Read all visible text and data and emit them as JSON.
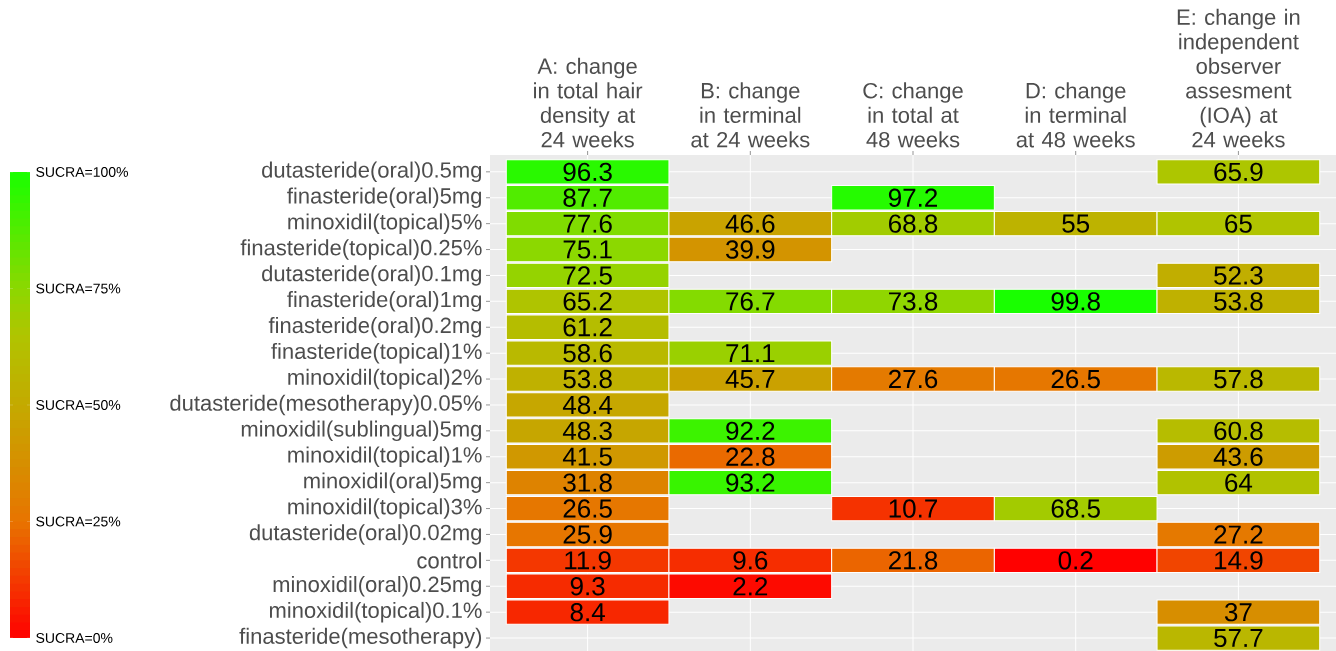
{
  "chart_data": {
    "type": "heatmap",
    "categories": [
      "A: change in total hair density at 24 weeks",
      "B: change in terminal at 24 weeks",
      "C: change in total at 48 weeks",
      "D: change in terminal at 48 weeks",
      "E: change in independent observer assesment (IOA) at 24 weeks"
    ],
    "y_categories": [
      "dutasteride(oral)0.5mg",
      "finasteride(oral)5mg",
      "minoxidil(topical)5%",
      "finasteride(topical)0.25%",
      "dutasteride(oral)0.1mg",
      "finasteride(oral)1mg",
      "finasteride(oral)0.2mg",
      "finasteride(topical)1%",
      "minoxidil(topical)2%",
      "dutasteride(mesotherapy)0.05%",
      "minoxidil(sublingual)5mg",
      "minoxidil(topical)1%",
      "minoxidil(oral)5mg",
      "minoxidil(topical)3%",
      "dutasteride(oral)0.02mg",
      "control",
      "minoxidil(oral)0.25mg",
      "minoxidil(topical)0.1%",
      "finasteride(mesotherapy)"
    ],
    "cells": [
      [
        96.3,
        null,
        null,
        null,
        65.9
      ],
      [
        87.7,
        null,
        97.2,
        null,
        null
      ],
      [
        77.6,
        46.6,
        68.8,
        55,
        65
      ],
      [
        75.1,
        39.9,
        null,
        null,
        null
      ],
      [
        72.5,
        null,
        null,
        null,
        52.3
      ],
      [
        65.2,
        76.7,
        73.8,
        99.8,
        53.8
      ],
      [
        61.2,
        null,
        null,
        null,
        null
      ],
      [
        58.6,
        71.1,
        null,
        null,
        null
      ],
      [
        53.8,
        45.7,
        27.6,
        26.5,
        57.8
      ],
      [
        48.4,
        null,
        null,
        null,
        null
      ],
      [
        48.3,
        92.2,
        null,
        null,
        60.8
      ],
      [
        41.5,
        22.8,
        null,
        null,
        43.6
      ],
      [
        31.8,
        93.2,
        null,
        null,
        64
      ],
      [
        26.5,
        null,
        10.7,
        68.5,
        null
      ],
      [
        25.9,
        null,
        null,
        null,
        27.2
      ],
      [
        11.9,
        9.6,
        21.8,
        0.2,
        14.9
      ],
      [
        9.3,
        2.2,
        null,
        null,
        null
      ],
      [
        8.4,
        null,
        null,
        null,
        37
      ],
      [
        null,
        null,
        null,
        null,
        57.7
      ]
    ],
    "data_labels": true,
    "grid": true,
    "clim": [
      0,
      100
    ],
    "cticks": [
      {
        "value": 0,
        "label": "SUCRA=0%"
      },
      {
        "value": 25,
        "label": "SUCRA=25%"
      },
      {
        "value": 50,
        "label": "SUCRA=50%"
      },
      {
        "value": 75,
        "label": "SUCRA=75%"
      },
      {
        "value": 100,
        "label": "SUCRA=100%"
      }
    ]
  }
}
